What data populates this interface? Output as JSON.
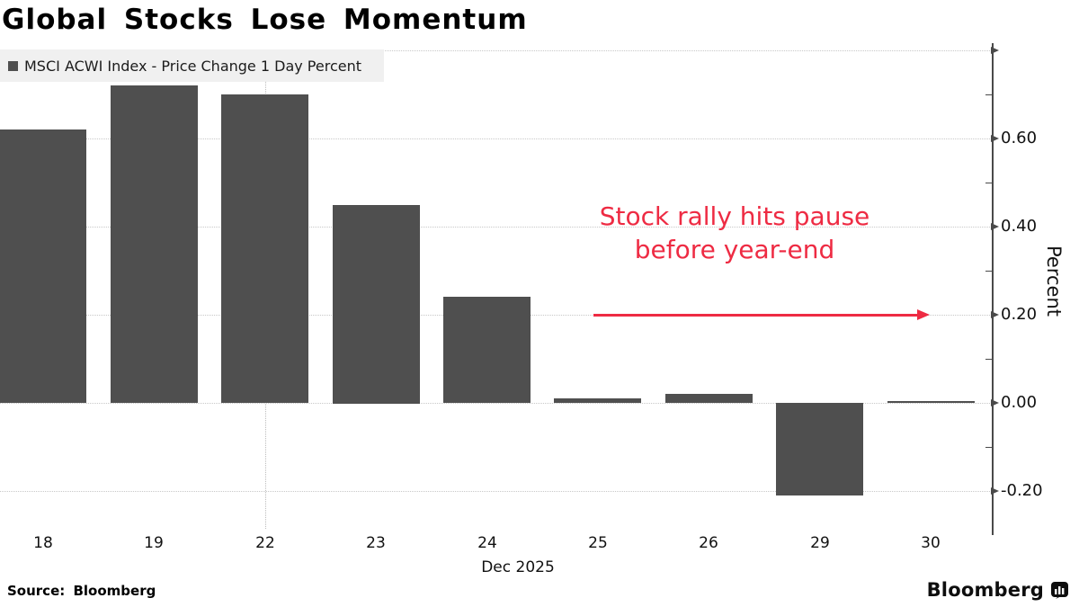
{
  "title": "Global Stocks Lose Momentum",
  "legend": {
    "label": "MSCI ACWI Index - Price Change 1 Day Percent"
  },
  "annotation": {
    "line1": "Stock rally hits pause",
    "line2": "before year-end"
  },
  "footer": {
    "source": "Source: Bloomberg",
    "brand": "Bloomberg"
  },
  "colors": {
    "bar": "#4f4f4f",
    "annotation_red": "#ee2b43",
    "grid": "#c8c8c8",
    "axis": "#4a4a4a",
    "legend_background": "#f0f0f0"
  },
  "chart_data": {
    "type": "bar",
    "series_name": "MSCI ACWI Index - Price Change 1 Day Percent",
    "categories": [
      "18",
      "19",
      "22",
      "23",
      "24",
      "25",
      "26",
      "29",
      "30"
    ],
    "values": [
      0.62,
      0.72,
      0.7,
      0.45,
      0.24,
      0.01,
      0.02,
      -0.21,
      0.0
    ],
    "x_axis_label": "Dec 2025",
    "ylabel": "Percent",
    "ylim": [
      -0.3,
      0.8
    ],
    "grid": "horizontal dotted at major ticks, y-axis on right side",
    "legend_position": "top-left",
    "yticks": [
      {
        "value": 0.8,
        "label": ""
      },
      {
        "value": 0.6,
        "label": "0.60"
      },
      {
        "value": 0.4,
        "label": "0.40"
      },
      {
        "value": 0.2,
        "label": "0.20"
      },
      {
        "value": 0.0,
        "label": "0.00"
      },
      {
        "value": -0.2,
        "label": "-0.20"
      }
    ],
    "minor_yticks": [
      0.7,
      0.5,
      0.3,
      0.1,
      -0.1
    ],
    "week_divider_category": "22"
  }
}
